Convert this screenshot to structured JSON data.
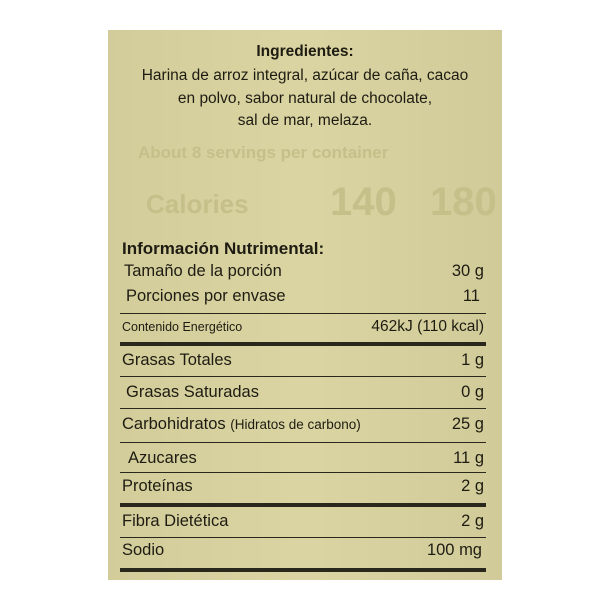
{
  "ghost_text": {
    "servings": "About 8 servings per container",
    "calories": "Calories",
    "val1": "140",
    "val2": "180"
  },
  "ingredients": {
    "title": "Ingredientes:",
    "lines": [
      "Harina de arroz integral, azúcar de caña, cacao",
      "en polvo, sabor natural de chocolate,",
      "sal de mar, melaza."
    ]
  },
  "nutrition": {
    "title": "Información Nutrimental:",
    "serving_size": {
      "label": "Tamaño de la porción",
      "value": "30 g"
    },
    "servings_per_container": {
      "label": "Porciones por envase",
      "value": "11"
    },
    "energy": {
      "label": "Contenido Energético",
      "value": "462kJ (110 kcal)"
    },
    "rows": [
      {
        "label": "Grasas Totales",
        "value": "1 g"
      },
      {
        "label": "Grasas Saturadas",
        "value": "0 g"
      },
      {
        "label": "Carbohidratos",
        "sublabel": "(Hidratos de carbono)",
        "value": "25 g"
      },
      {
        "label": "Azucares",
        "value": "11 g"
      },
      {
        "label": "Proteínas",
        "value": "2 g"
      },
      {
        "label": "Fibra Dietética",
        "value": "2 g"
      },
      {
        "label": "Sodio",
        "value": "100 mg"
      }
    ]
  }
}
